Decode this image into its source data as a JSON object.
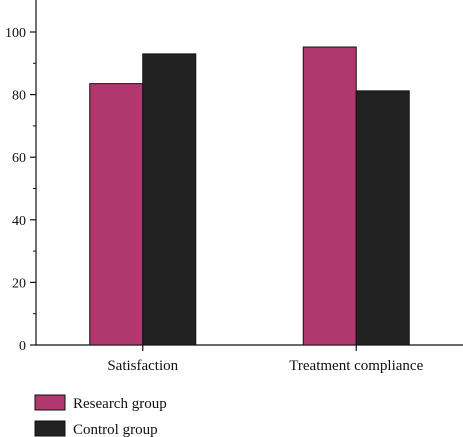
{
  "chart_data": {
    "type": "bar",
    "categories": [
      "Satisfaction",
      "Treatment compliance"
    ],
    "series": [
      {
        "name": "Research group",
        "values": [
          83.5,
          95.2
        ],
        "color": "#b0386f"
      },
      {
        "name": "Control group",
        "values": [
          93.0,
          81.2
        ],
        "color": "#222222"
      }
    ],
    "ylim": [
      0,
      100
    ],
    "yticks": [
      0,
      20,
      40,
      60,
      80,
      100
    ],
    "grid": false,
    "legend_position": "bottom-left",
    "title": "",
    "xlabel": "",
    "ylabel": ""
  }
}
